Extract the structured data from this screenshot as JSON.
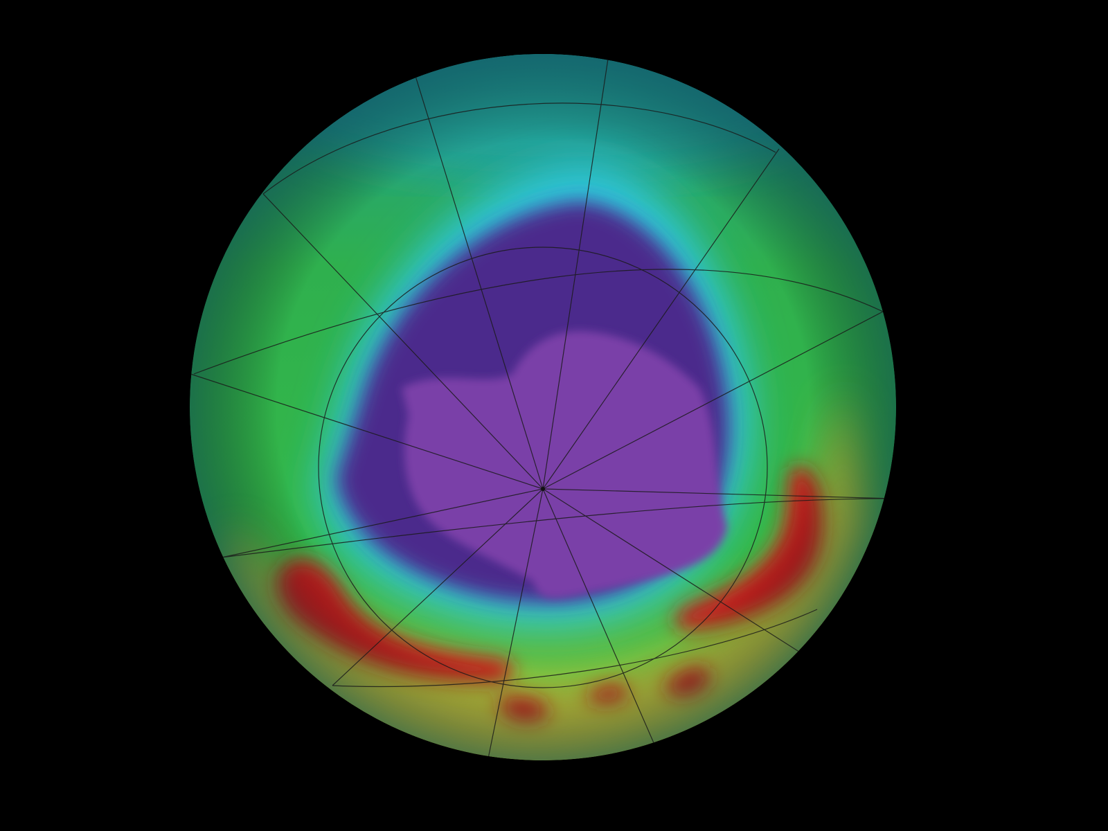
{
  "map": {
    "projection": "orthographic",
    "view": "south-polar",
    "graticule": true,
    "colors": {
      "background": "#000000",
      "ozone_low": "#4a2a8a",
      "antarctica": "#7a3fa8",
      "ring": "#2fc8e8",
      "mid": "#2fb84a",
      "high": "#e0d030",
      "very_high": "#c0141a",
      "ocean_edge": "#1e8a8a"
    }
  }
}
